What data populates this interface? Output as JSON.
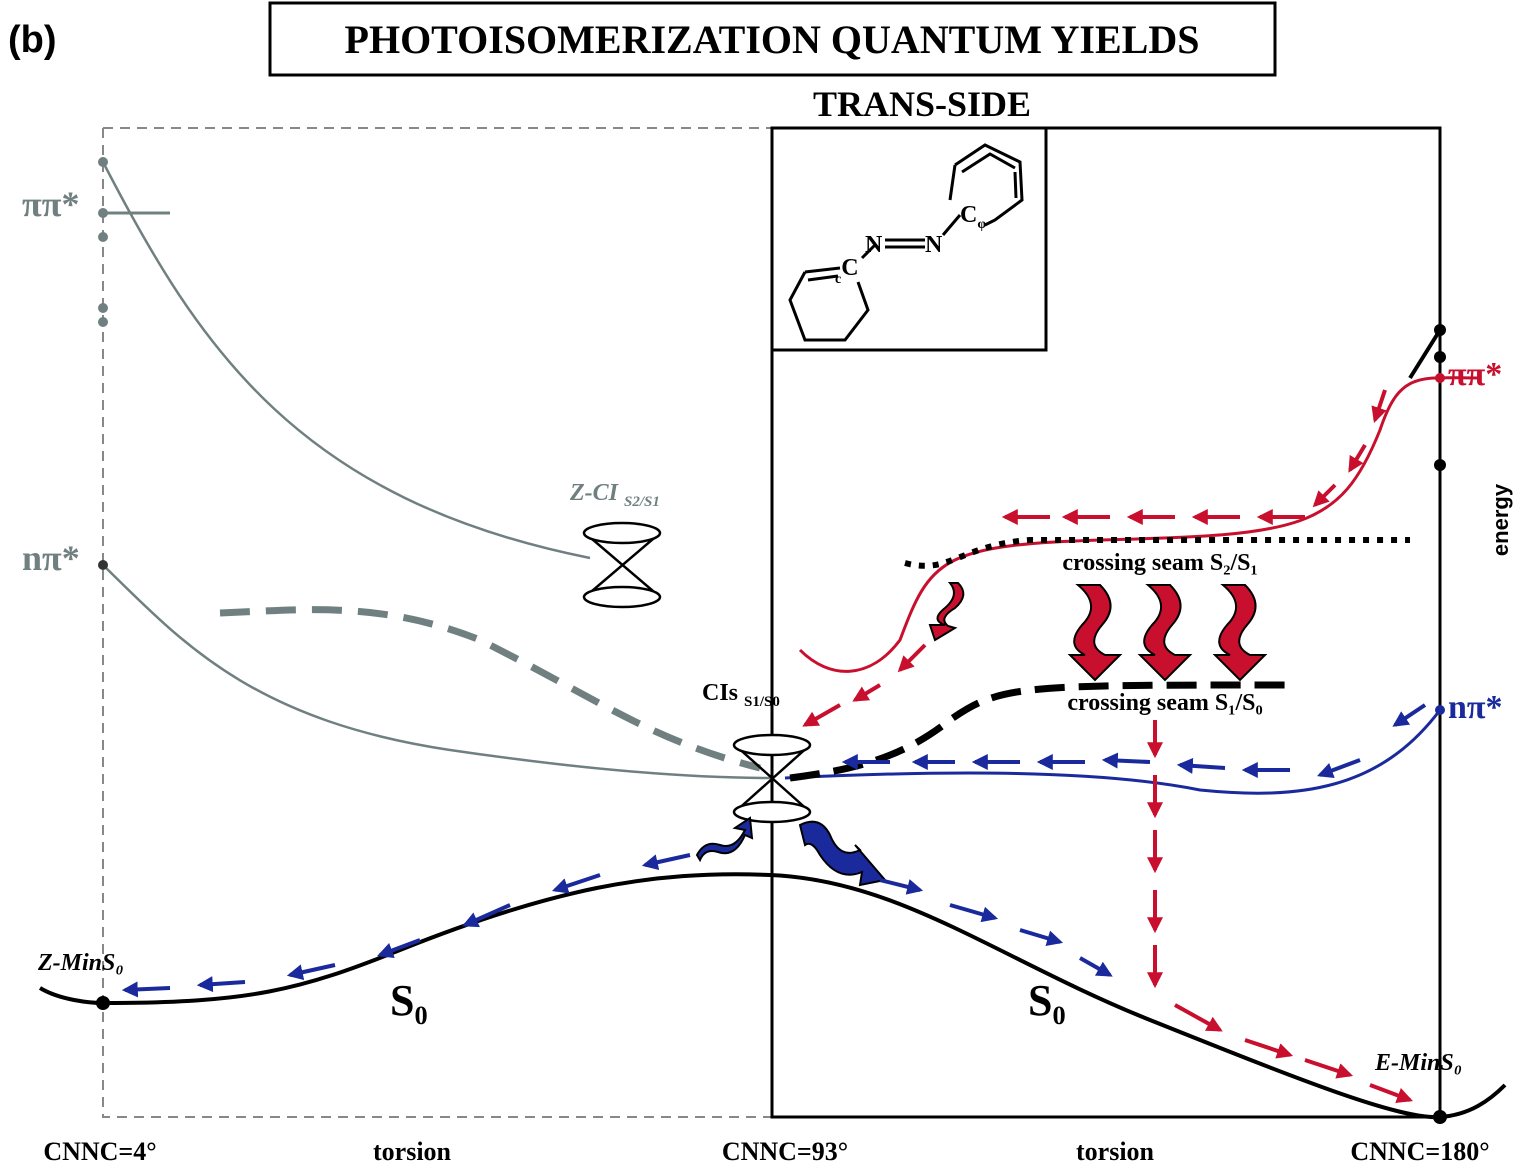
{
  "panel_label": "(b)",
  "title": "PHOTOISOMERIZATION QUANTUM YIELDS",
  "section_label": "TRANS-SIDE",
  "left_states": {
    "pipi": "ππ*",
    "npi": "nπ*"
  },
  "right_states": {
    "pipi": "ππ*",
    "npi": "nπ*"
  },
  "conical_intersections": [
    {
      "label": "Z-CI",
      "subscript": "S2/S1"
    },
    {
      "label": "CIs",
      "subscript": "S1/S0"
    }
  ],
  "seams": [
    "crossing seam S₂/S₁",
    "crossing seam S₁/S₀"
  ],
  "axis_label": "energy",
  "minima": [
    "Z-MinS₀",
    "E-MinS₀"
  ],
  "ground_state_labels": [
    "S₀",
    "S₀"
  ],
  "x_labels": [
    "CNNC=4°",
    "torsion",
    "CNNC=93°",
    "torsion",
    "CNNC=180°"
  ],
  "molecule": {
    "atoms": [
      {
        "symbol": "C",
        "sub": "c"
      },
      {
        "symbol": "N"
      },
      {
        "symbol": "N"
      },
      {
        "symbol": "C",
        "sub": "φ"
      }
    ]
  }
}
